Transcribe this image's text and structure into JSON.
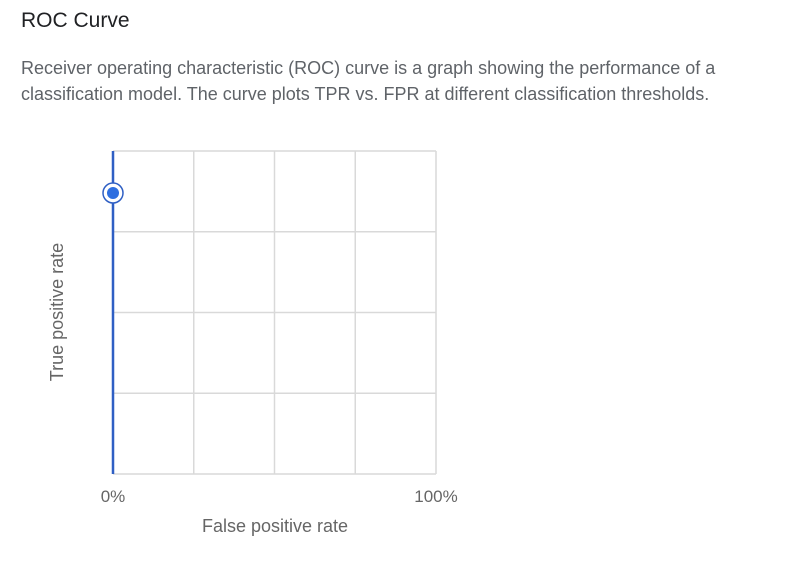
{
  "header": {
    "title": "ROC Curve",
    "description": "Receiver operating characteristic (ROC) curve is a graph showing the performance of a classification model. The curve plots TPR vs. FPR at different classification thresholds."
  },
  "colors": {
    "curve": "#2f5fc4",
    "point_fill": "#2f6fe0",
    "grid": "#d9d9d9"
  },
  "chart_data": {
    "type": "line",
    "title": "",
    "xlabel": "False positive rate",
    "ylabel": "True positive rate",
    "x_ticks": [
      "0%",
      "100%"
    ],
    "xlim": [
      0,
      1
    ],
    "ylim": [
      0,
      1
    ],
    "grid": true,
    "series": [
      {
        "points": [
          {
            "x": 0,
            "y": 0
          },
          {
            "x": 0,
            "y": 1
          }
        ]
      }
    ],
    "highlighted_point": {
      "x": 0,
      "y": 0.87
    }
  }
}
